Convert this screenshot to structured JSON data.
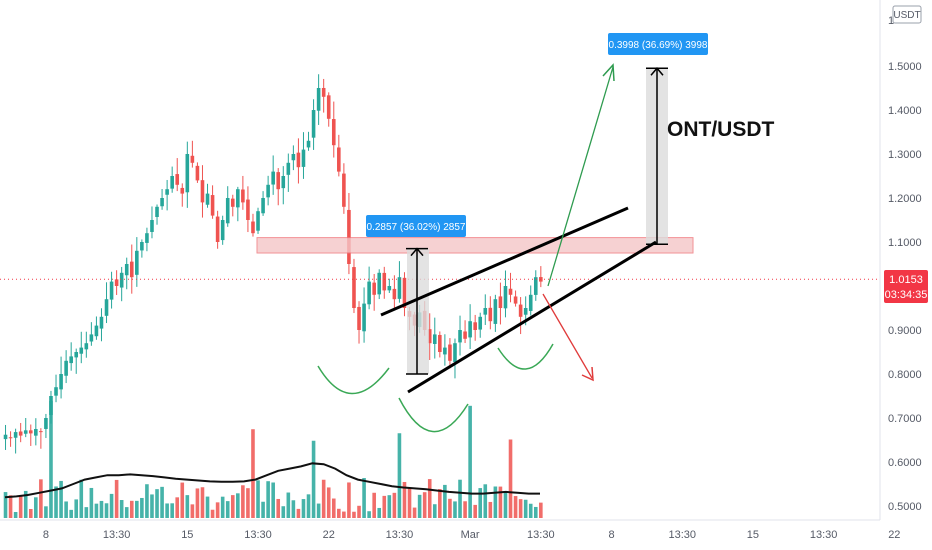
{
  "chart_data": {
    "type": "candlestick",
    "title": "ONT/USDT",
    "currency_badge": "USDT",
    "y_axis": {
      "range": [
        0.5,
        1.5
      ],
      "ticks": [
        "1.5000",
        "1.4000",
        "1.3000",
        "1.2000",
        "1.1000",
        "0.9000",
        "0.8000",
        "0.7000",
        "0.6000",
        "0.5000"
      ],
      "tick_values": [
        1.5,
        1.4,
        1.3,
        1.2,
        1.1,
        0.9,
        0.8,
        0.7,
        0.6,
        0.5
      ],
      "partial_top_tick": "1"
    },
    "x_axis": {
      "ticks": [
        "8",
        "13:30",
        "15",
        "13:30",
        "22",
        "13:30",
        "Mar",
        "13:30",
        "8",
        "13:30",
        "15",
        "13:30",
        "22"
      ],
      "tick_index": [
        8,
        22,
        36,
        50,
        64,
        78,
        92,
        106,
        120,
        134,
        148,
        162,
        176
      ]
    },
    "current_price": {
      "value": 1.0153,
      "label": "1.0153",
      "countdown": "03:34:35",
      "color": "#f23645"
    },
    "close": [
      0.662,
      0.655,
      0.668,
      0.66,
      0.672,
      0.665,
      0.675,
      0.668,
      0.7,
      0.75,
      0.77,
      0.8,
      0.83,
      0.84,
      0.85,
      0.86,
      0.87,
      0.89,
      0.91,
      0.93,
      0.97,
      1.01,
      1.0,
      1.03,
      1.05,
      1.02,
      1.08,
      1.1,
      1.12,
      1.15,
      1.18,
      1.2,
      1.22,
      1.25,
      1.23,
      1.21,
      1.3,
      1.28,
      1.24,
      1.19,
      1.21,
      1.16,
      1.1,
      1.15,
      1.2,
      1.18,
      1.22,
      1.19,
      1.15,
      1.12,
      1.17,
      1.2,
      1.23,
      1.26,
      1.22,
      1.25,
      1.28,
      1.3,
      1.27,
      1.31,
      1.33,
      1.4,
      1.45,
      1.43,
      1.38,
      1.32,
      1.26,
      1.18,
      1.05,
      0.95,
      0.9,
      0.96,
      1.01,
      0.98,
      1.03,
      0.99,
      1.0,
      0.97,
      1.02,
      0.95,
      0.93,
      0.91,
      0.94,
      0.9,
      0.87,
      0.89,
      0.85,
      0.86,
      0.83,
      0.87,
      0.9,
      0.88,
      0.92,
      0.9,
      0.93,
      0.95,
      0.92,
      0.97,
      0.95,
      1.0,
      0.98,
      0.96,
      0.93,
      0.95,
      0.98,
      1.02,
      1.01
    ],
    "volume_ma": [
      0.52,
      0.522,
      0.525,
      0.53,
      0.535,
      0.54,
      0.55,
      0.56,
      0.565,
      0.57,
      0.57,
      0.572,
      0.57,
      0.568,
      0.565,
      0.562,
      0.56,
      0.558,
      0.556,
      0.555,
      0.555,
      0.556,
      0.56,
      0.57,
      0.58,
      0.585,
      0.59,
      0.597,
      0.595,
      0.585,
      0.57,
      0.56,
      0.555,
      0.55,
      0.545,
      0.542,
      0.54,
      0.538,
      0.535,
      0.532,
      0.53,
      0.528,
      0.528,
      0.53,
      0.532,
      0.53,
      0.528,
      0.528
    ],
    "volume_label": "",
    "resistance_zone": {
      "low": 1.075,
      "high": 1.11
    },
    "current_price_line": 1.0153,
    "annotations": [
      {
        "label": "0.2857 (36.02%) 2857",
        "from": 0.8,
        "to": 1.085
      },
      {
        "label": "0.3998 (36.69%) 3998",
        "from": 1.095,
        "to": 1.495
      }
    ],
    "patterns": [
      "rising wedge",
      "inverse head and shoulders",
      "breakout up (green)",
      "breakdown down (red)"
    ],
    "colors": {
      "up": "#26a69a",
      "down": "#ef5350",
      "zone": "#f5c6c8",
      "measure_box": "#2196f3",
      "up_arrow": "#2e9b4f",
      "down_arrow": "#e03b3b"
    }
  }
}
